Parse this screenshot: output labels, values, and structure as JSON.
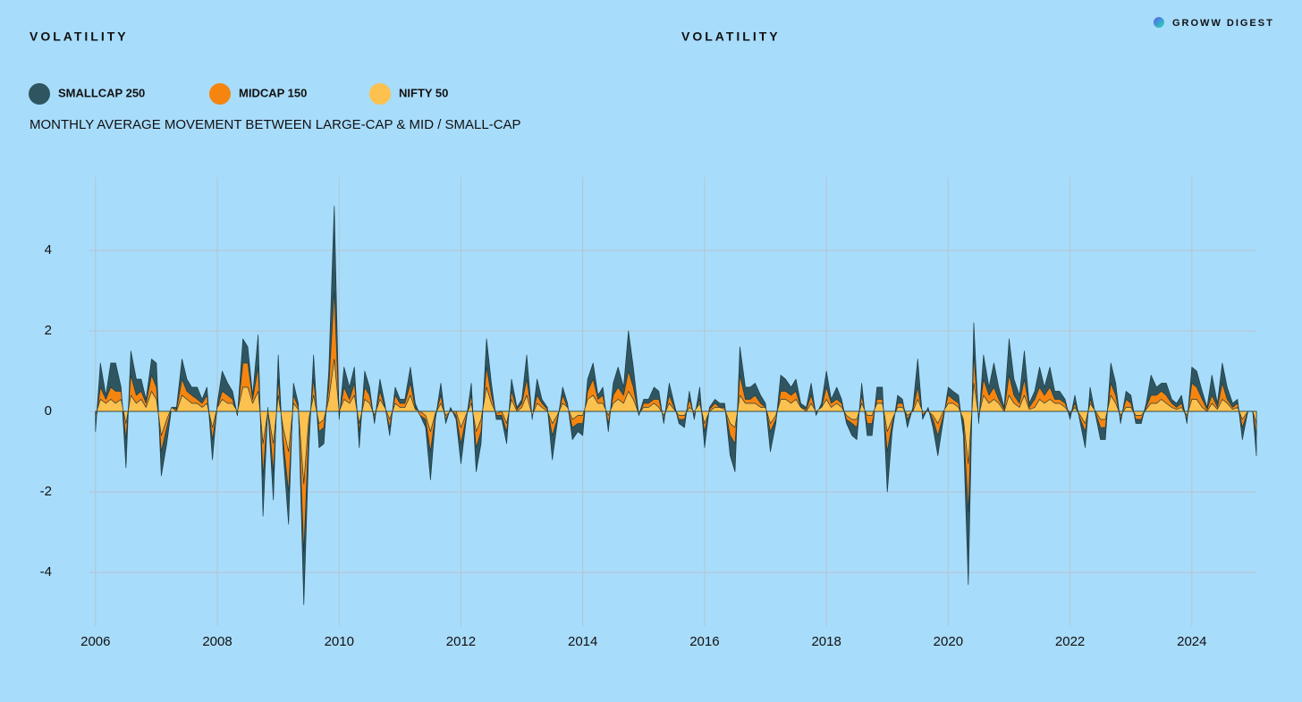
{
  "chart_data": {
    "type": "area",
    "header": "VOLATILITY",
    "title": "VOLATILITY",
    "brand": "GROWW DIGEST",
    "subtitle": "MONTHLY AVERAGE MOVEMENT BETWEEN LARGE-CAP & MID / SMALL-CAP",
    "xlim": [
      2005.9,
      2025.06
    ],
    "ylim": [
      -5.33,
      5.82
    ],
    "xticks": [
      2006,
      2008,
      2010,
      2012,
      2014,
      2016,
      2018,
      2020,
      2022,
      2024
    ],
    "yticks": [
      -4,
      -2,
      0,
      2,
      4
    ],
    "grid": true,
    "x": [
      2006,
      2006.08,
      2006.17,
      2006.25,
      2006.33,
      2006.42,
      2006.5,
      2006.58,
      2006.67,
      2006.75,
      2006.83,
      2006.92,
      2007,
      2007.08,
      2007.17,
      2007.25,
      2007.33,
      2007.42,
      2007.5,
      2007.58,
      2007.67,
      2007.75,
      2007.83,
      2007.92,
      2008,
      2008.08,
      2008.17,
      2008.25,
      2008.33,
      2008.42,
      2008.5,
      2008.58,
      2008.67,
      2008.75,
      2008.83,
      2008.92,
      2009,
      2009.08,
      2009.17,
      2009.25,
      2009.33,
      2009.42,
      2009.5,
      2009.58,
      2009.67,
      2009.75,
      2009.83,
      2009.92,
      2010,
      2010.08,
      2010.17,
      2010.25,
      2010.33,
      2010.42,
      2010.5,
      2010.58,
      2010.67,
      2010.75,
      2010.83,
      2010.92,
      2011,
      2011.08,
      2011.17,
      2011.25,
      2011.33,
      2011.42,
      2011.5,
      2011.58,
      2011.67,
      2011.75,
      2011.83,
      2011.92,
      2012,
      2012.08,
      2012.17,
      2012.25,
      2012.33,
      2012.42,
      2012.5,
      2012.58,
      2012.67,
      2012.75,
      2012.83,
      2012.92,
      2013,
      2013.08,
      2013.17,
      2013.25,
      2013.33,
      2013.42,
      2013.5,
      2013.58,
      2013.67,
      2013.75,
      2013.83,
      2013.92,
      2014,
      2014.08,
      2014.17,
      2014.25,
      2014.33,
      2014.42,
      2014.5,
      2014.58,
      2014.67,
      2014.75,
      2014.83,
      2014.92,
      2015,
      2015.08,
      2015.17,
      2015.25,
      2015.33,
      2015.42,
      2015.5,
      2015.58,
      2015.67,
      2015.75,
      2015.83,
      2015.92,
      2016,
      2016.08,
      2016.17,
      2016.25,
      2016.33,
      2016.42,
      2016.5,
      2016.58,
      2016.67,
      2016.75,
      2016.83,
      2016.92,
      2017,
      2017.08,
      2017.17,
      2017.25,
      2017.33,
      2017.42,
      2017.5,
      2017.58,
      2017.67,
      2017.75,
      2017.83,
      2017.92,
      2018,
      2018.08,
      2018.17,
      2018.25,
      2018.33,
      2018.42,
      2018.5,
      2018.58,
      2018.67,
      2018.75,
      2018.83,
      2018.92,
      2019,
      2019.08,
      2019.17,
      2019.25,
      2019.33,
      2019.42,
      2019.5,
      2019.58,
      2019.67,
      2019.75,
      2019.83,
      2019.92,
      2020,
      2020.08,
      2020.17,
      2020.25,
      2020.33,
      2020.42,
      2020.5,
      2020.58,
      2020.67,
      2020.75,
      2020.83,
      2020.92,
      2021,
      2021.08,
      2021.17,
      2021.25,
      2021.33,
      2021.42,
      2021.5,
      2021.58,
      2021.67,
      2021.75,
      2021.83,
      2021.92,
      2022,
      2022.08,
      2022.17,
      2022.25,
      2022.33,
      2022.42,
      2022.5,
      2022.58,
      2022.67,
      2022.75,
      2022.83,
      2022.92,
      2023,
      2023.08,
      2023.17,
      2023.25,
      2023.33,
      2023.42,
      2023.5,
      2023.58,
      2023.67,
      2023.75,
      2023.83,
      2023.92,
      2024,
      2024.08,
      2024.17,
      2024.25,
      2024.33,
      2024.42,
      2024.5,
      2024.58,
      2024.67,
      2024.75,
      2024.83,
      2024.92,
      2025,
      2025.06
    ],
    "series": [
      {
        "name": "SMALLCAP 250",
        "color": "#2f5660",
        "values": [
          -0.5,
          1.2,
          0.4,
          1.2,
          1.2,
          0.6,
          -1.4,
          1.5,
          0.8,
          0.8,
          0.3,
          1.3,
          1.2,
          -1.6,
          -0.8,
          0.1,
          0.1,
          1.3,
          0.8,
          0.6,
          0.6,
          0.3,
          0.6,
          -1.2,
          0.2,
          1.0,
          0.7,
          0.5,
          -0.1,
          1.8,
          1.6,
          0.4,
          1.9,
          -2.6,
          0.1,
          -2.2,
          1.4,
          -1.0,
          -2.8,
          0.7,
          0.2,
          -4.8,
          -1.0,
          1.4,
          -0.9,
          -0.8,
          1.0,
          5.1,
          -0.2,
          1.1,
          0.6,
          1.1,
          -0.9,
          1.0,
          0.6,
          -0.3,
          0.8,
          0.2,
          -0.6,
          0.6,
          0.3,
          0.3,
          1.1,
          0.2,
          -0.1,
          -0.4,
          -1.7,
          -0.2,
          0.7,
          -0.3,
          0.1,
          -0.2,
          -1.3,
          -0.3,
          0.7,
          -1.5,
          -0.8,
          1.8,
          0.7,
          -0.2,
          -0.2,
          -0.8,
          0.8,
          0.1,
          0.3,
          1.4,
          -0.2,
          0.8,
          0.3,
          0.1,
          -1.2,
          -0.3,
          0.6,
          0.2,
          -0.7,
          -0.5,
          -0.6,
          0.8,
          1.2,
          0.4,
          0.6,
          -0.5,
          0.7,
          1.1,
          0.6,
          2.0,
          1.1,
          -0.1,
          0.3,
          0.3,
          0.6,
          0.5,
          -0.3,
          0.7,
          0.2,
          -0.3,
          -0.4,
          0.5,
          -0.2,
          0.6,
          -0.9,
          0.1,
          0.3,
          0.2,
          0.2,
          -1.1,
          -1.5,
          1.6,
          0.6,
          0.6,
          0.7,
          0.4,
          0.2,
          -1.0,
          -0.3,
          0.9,
          0.8,
          0.6,
          0.8,
          0.2,
          0.1,
          0.7,
          -0.1,
          0.2,
          1.0,
          0.3,
          0.6,
          0.3,
          -0.3,
          -0.6,
          -0.7,
          0.7,
          -0.6,
          -0.6,
          0.6,
          0.6,
          -2.0,
          -0.5,
          0.4,
          0.3,
          -0.4,
          0.1,
          1.3,
          -0.2,
          0.1,
          -0.4,
          -1.1,
          -0.2,
          0.6,
          0.5,
          0.4,
          -0.6,
          -4.3,
          2.2,
          -0.3,
          1.4,
          0.6,
          1.2,
          0.6,
          0.1,
          1.8,
          0.8,
          0.4,
          1.5,
          0.2,
          0.5,
          1.1,
          0.6,
          1.1,
          0.5,
          0.5,
          0.3,
          -0.2,
          0.4,
          -0.3,
          -0.9,
          0.6,
          -0.1,
          -0.7,
          -0.7,
          1.2,
          0.7,
          -0.3,
          0.5,
          0.4,
          -0.3,
          -0.3,
          0.2,
          0.9,
          0.6,
          0.7,
          0.7,
          0.3,
          0.2,
          0.4,
          -0.3,
          1.1,
          1.0,
          0.5,
          0.1,
          0.9,
          0.2,
          1.2,
          0.6,
          0.2,
          0.3,
          -0.7,
          0,
          0,
          -1.1
        ]
      },
      {
        "name": "MIDCAP 150",
        "color": "#f5850f",
        "values": [
          -0.3,
          0.6,
          0.3,
          0.6,
          0.5,
          0.5,
          -0.7,
          0.9,
          0.4,
          0.5,
          0.2,
          0.9,
          0.6,
          -1.0,
          -0.4,
          0.1,
          0.05,
          0.8,
          0.5,
          0.4,
          0.3,
          0.2,
          0.4,
          -0.7,
          0.1,
          0.5,
          0.4,
          0.3,
          -0.1,
          1.2,
          1.2,
          0.3,
          1.1,
          -1.6,
          0.05,
          -1.5,
          0.8,
          -0.7,
          -2.0,
          0.4,
          0.1,
          -3.5,
          -0.5,
          0.8,
          -0.5,
          -0.4,
          0.6,
          3.0,
          -0.1,
          0.6,
          0.3,
          0.7,
          -0.5,
          0.6,
          0.4,
          -0.2,
          0.5,
          0.1,
          -0.4,
          0.4,
          0.2,
          0.2,
          0.7,
          0.1,
          -0.1,
          -0.2,
          -1.0,
          -0.1,
          0.4,
          -0.2,
          0.05,
          -0.1,
          -0.8,
          -0.2,
          0.4,
          -0.9,
          -0.5,
          1.1,
          0.4,
          -0.1,
          -0.1,
          -0.5,
          0.5,
          0.05,
          0.2,
          0.8,
          -0.1,
          0.4,
          0.2,
          0.05,
          -0.6,
          -0.2,
          0.4,
          0.1,
          -0.4,
          -0.3,
          -0.3,
          0.5,
          0.8,
          0.3,
          0.4,
          -0.3,
          0.4,
          0.6,
          0.4,
          1.0,
          0.6,
          -0.1,
          0.2,
          0.2,
          0.3,
          0.3,
          -0.2,
          0.4,
          0.1,
          -0.2,
          -0.2,
          0.3,
          -0.1,
          0.3,
          -0.5,
          0.05,
          0.2,
          0.1,
          0.1,
          -0.6,
          -0.8,
          0.9,
          0.3,
          0.3,
          0.4,
          0.2,
          0.1,
          -0.5,
          -0.2,
          0.5,
          0.5,
          0.4,
          0.5,
          0.1,
          0.05,
          0.4,
          -0.05,
          0.1,
          0.6,
          0.2,
          0.3,
          0.2,
          -0.2,
          -0.3,
          -0.4,
          0.4,
          -0.3,
          -0.3,
          0.3,
          0.3,
          -1.0,
          -0.3,
          0.2,
          0.2,
          -0.2,
          0.05,
          0.6,
          -0.1,
          0.05,
          -0.2,
          -0.6,
          -0.1,
          0.4,
          0.3,
          0.2,
          -0.3,
          -2.5,
          1.4,
          -0.2,
          0.8,
          0.4,
          0.6,
          0.3,
          0.05,
          0.9,
          0.4,
          0.2,
          0.8,
          0.1,
          0.3,
          0.6,
          0.4,
          0.6,
          0.3,
          0.3,
          0.2,
          -0.1,
          0.2,
          -0.2,
          -0.5,
          0.3,
          -0.05,
          -0.4,
          -0.4,
          0.7,
          0.4,
          -0.2,
          0.3,
          0.2,
          -0.2,
          -0.2,
          0.1,
          0.4,
          0.4,
          0.5,
          0.4,
          0.2,
          0.1,
          0.2,
          -0.2,
          0.7,
          0.6,
          0.3,
          0.05,
          0.4,
          0.1,
          0.7,
          0.3,
          0.1,
          0.2,
          -0.4,
          0,
          0,
          -0.6
        ]
      },
      {
        "name": "NIFTY 50",
        "color": "#fcc14e",
        "values": [
          -0.1,
          0.3,
          0.2,
          0.3,
          0.2,
          0.3,
          -0.3,
          0.4,
          0.2,
          0.3,
          0.1,
          0.5,
          0.3,
          -0.6,
          -0.2,
          0.1,
          0,
          0.4,
          0.3,
          0.2,
          0.2,
          0.1,
          0.2,
          -0.4,
          0.1,
          0.3,
          0.2,
          0.2,
          0,
          0.6,
          0.6,
          0.2,
          0.5,
          -0.8,
          0,
          -0.8,
          0.4,
          -0.4,
          -1.0,
          0.2,
          0.05,
          -1.8,
          -0.2,
          0.4,
          -0.3,
          -0.2,
          0.3,
          1.3,
          0,
          0.3,
          0.2,
          0.4,
          -0.3,
          0.3,
          0.2,
          -0.1,
          0.3,
          0.1,
          -0.2,
          0.2,
          0.1,
          0.1,
          0.4,
          0.05,
          0,
          -0.1,
          -0.5,
          -0.05,
          0.2,
          -0.1,
          0,
          0,
          -0.4,
          -0.1,
          0.2,
          -0.5,
          -0.2,
          0.6,
          0.2,
          -0.05,
          0,
          -0.3,
          0.3,
          0,
          0.1,
          0.4,
          -0.1,
          0.2,
          0.1,
          0,
          -0.3,
          -0.1,
          0.2,
          0.1,
          -0.2,
          -0.1,
          -0.1,
          0.3,
          0.4,
          0.2,
          0.2,
          -0.1,
          0.2,
          0.3,
          0.2,
          0.5,
          0.3,
          -0.05,
          0.1,
          0.1,
          0.2,
          0.1,
          -0.1,
          0.2,
          0.05,
          -0.1,
          -0.1,
          0.1,
          0,
          0.2,
          -0.3,
          0,
          0.1,
          0.1,
          0.05,
          -0.3,
          -0.4,
          0.4,
          0.2,
          0.2,
          0.2,
          0.1,
          0.1,
          -0.3,
          -0.1,
          0.3,
          0.3,
          0.2,
          0.3,
          0.1,
          0,
          0.2,
          0,
          0.1,
          0.3,
          0.1,
          0.2,
          0.1,
          -0.1,
          -0.2,
          -0.2,
          0.2,
          -0.1,
          -0.1,
          0.2,
          0.2,
          -0.5,
          -0.2,
          0.1,
          0.1,
          -0.1,
          0,
          0.3,
          0,
          0,
          -0.1,
          -0.3,
          0,
          0.2,
          0.2,
          0.1,
          -0.2,
          -1.3,
          0.7,
          -0.1,
          0.4,
          0.2,
          0.3,
          0.2,
          0,
          0.4,
          0.2,
          0.1,
          0.4,
          0.05,
          0.1,
          0.3,
          0.2,
          0.3,
          0.2,
          0.2,
          0.1,
          -0.05,
          0.1,
          -0.1,
          -0.3,
          0.2,
          0,
          -0.2,
          -0.2,
          0.4,
          0.2,
          -0.1,
          0.1,
          0.1,
          -0.1,
          -0.1,
          0.05,
          0.2,
          0.2,
          0.3,
          0.2,
          0.1,
          0.05,
          0.1,
          -0.1,
          0.3,
          0.3,
          0.1,
          0,
          0.2,
          0.05,
          0.3,
          0.2,
          0.05,
          0.1,
          -0.2,
          0,
          0,
          -0.3
        ]
      }
    ]
  }
}
